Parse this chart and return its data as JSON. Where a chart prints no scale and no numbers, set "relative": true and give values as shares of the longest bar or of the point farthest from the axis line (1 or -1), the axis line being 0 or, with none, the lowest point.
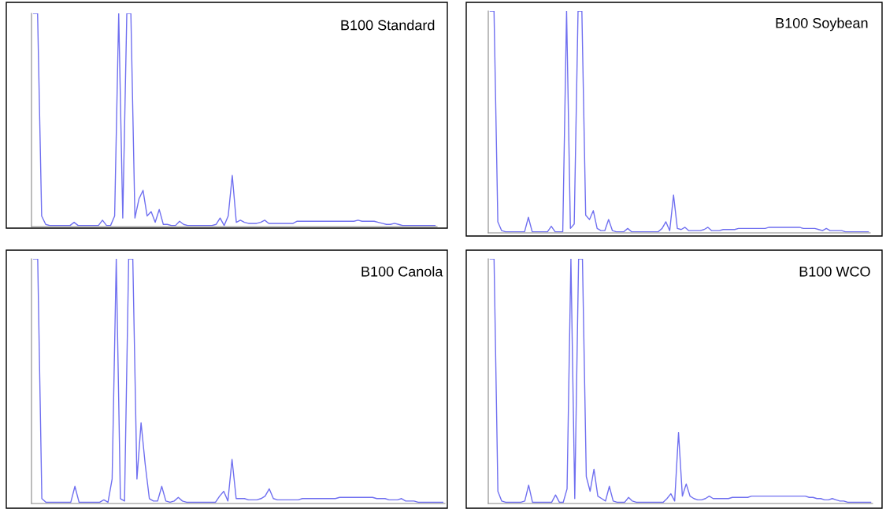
{
  "chart_data": [
    {
      "type": "line",
      "title": "B100 Standard",
      "relative": true,
      "color": "#6f6ff0",
      "categories": [
        null,
        null,
        null,
        null,
        null,
        null,
        null,
        null,
        null,
        null,
        null,
        null,
        null,
        null,
        null,
        null,
        null,
        null,
        null,
        null,
        null,
        null,
        null,
        null,
        null,
        null,
        null,
        null,
        null,
        null,
        null,
        null,
        null,
        null,
        null,
        null,
        null,
        null,
        null,
        null,
        null,
        null,
        null,
        null,
        null,
        null,
        null,
        null,
        null,
        null,
        null,
        null,
        null,
        null,
        null,
        null,
        null,
        null,
        null,
        null,
        null,
        null,
        null,
        null,
        null,
        null,
        null,
        null,
        null,
        null,
        null,
        null,
        null,
        null,
        null,
        null,
        null,
        null,
        null,
        null,
        null,
        null,
        null,
        null,
        null,
        null,
        null,
        null,
        null,
        null,
        null,
        null,
        null,
        null,
        null,
        null,
        null,
        null,
        null,
        null
      ],
      "values": [
        1,
        1,
        0.05,
        0.01,
        0.005,
        0.005,
        0.005,
        0.005,
        0.005,
        0.005,
        0.02,
        0.005,
        0.005,
        0.005,
        0.005,
        0.005,
        0.005,
        0.03,
        0.005,
        0.005,
        0.05,
        1,
        0.04,
        1,
        1,
        0.04,
        0.13,
        0.17,
        0.05,
        0.07,
        0.02,
        0.08,
        0.01,
        0.01,
        0.005,
        0.005,
        0.025,
        0.01,
        0.005,
        0.005,
        0.005,
        0.005,
        0.005,
        0.005,
        0.005,
        0.01,
        0.04,
        0.005,
        0.05,
        0.24,
        0.02,
        0.03,
        0.02,
        0.015,
        0.015,
        0.015,
        0.02,
        0.03,
        0.015,
        0.015,
        0.015,
        0.015,
        0.015,
        0.015,
        0.015,
        0.025,
        0.025,
        0.025,
        0.025,
        0.025,
        0.025,
        0.025,
        0.025,
        0.025,
        0.025,
        0.025,
        0.025,
        0.025,
        0.025,
        0.025,
        0.03,
        0.025,
        0.025,
        0.025,
        0.025,
        0.02,
        0.015,
        0.01,
        0.01,
        0.015,
        0.01,
        0.005,
        0.005,
        0.005,
        0.005,
        0.005,
        0.005,
        0.005,
        0.005,
        0.005
      ]
    },
    {
      "type": "line",
      "title": "B100 Soybean",
      "relative": true,
      "color": "#6f6ff0",
      "categories": [
        null,
        null,
        null,
        null,
        null,
        null,
        null,
        null,
        null,
        null,
        null,
        null,
        null,
        null,
        null,
        null,
        null,
        null,
        null,
        null,
        null,
        null,
        null,
        null,
        null,
        null,
        null,
        null,
        null,
        null,
        null,
        null,
        null,
        null,
        null,
        null,
        null,
        null,
        null,
        null,
        null,
        null,
        null,
        null,
        null,
        null,
        null,
        null,
        null,
        null,
        null,
        null,
        null,
        null,
        null,
        null,
        null,
        null,
        null,
        null,
        null,
        null,
        null,
        null,
        null,
        null,
        null,
        null,
        null,
        null,
        null,
        null,
        null,
        null,
        null,
        null,
        null,
        null,
        null,
        null,
        null,
        null,
        null,
        null,
        null,
        null,
        null,
        null,
        null,
        null,
        null,
        null,
        null,
        null,
        null,
        null,
        null,
        null,
        null,
        null
      ],
      "values": [
        1,
        1,
        0.05,
        0.01,
        0.005,
        0.005,
        0.005,
        0.005,
        0.005,
        0.005,
        0.07,
        0.005,
        0.005,
        0.005,
        0.005,
        0.005,
        0.03,
        0.005,
        0.005,
        0.005,
        1,
        0.02,
        0.04,
        1,
        1,
        0.08,
        0.06,
        0.1,
        0.02,
        0.01,
        0.01,
        0.06,
        0.01,
        0.005,
        0.005,
        0.005,
        0.02,
        0.005,
        0.005,
        0.005,
        0.005,
        0.005,
        0.005,
        0.005,
        0.005,
        0.02,
        0.05,
        0.01,
        0.17,
        0.02,
        0.015,
        0.025,
        0.01,
        0.01,
        0.01,
        0.01,
        0.015,
        0.025,
        0.01,
        0.01,
        0.01,
        0.015,
        0.015,
        0.015,
        0.015,
        0.02,
        0.02,
        0.02,
        0.02,
        0.02,
        0.02,
        0.02,
        0.02,
        0.025,
        0.025,
        0.025,
        0.025,
        0.025,
        0.025,
        0.025,
        0.025,
        0.025,
        0.02,
        0.02,
        0.02,
        0.02,
        0.015,
        0.01,
        0.02,
        0.01,
        0.01,
        0.01,
        0.01,
        0.005,
        0.005,
        0.005,
        0.005,
        0.005,
        0.005,
        0.005
      ]
    },
    {
      "type": "line",
      "title": "B100 Canola",
      "relative": true,
      "color": "#6f6ff0",
      "categories": [
        null,
        null,
        null,
        null,
        null,
        null,
        null,
        null,
        null,
        null,
        null,
        null,
        null,
        null,
        null,
        null,
        null,
        null,
        null,
        null,
        null,
        null,
        null,
        null,
        null,
        null,
        null,
        null,
        null,
        null,
        null,
        null,
        null,
        null,
        null,
        null,
        null,
        null,
        null,
        null,
        null,
        null,
        null,
        null,
        null,
        null,
        null,
        null,
        null,
        null,
        null,
        null,
        null,
        null,
        null,
        null,
        null,
        null,
        null,
        null,
        null,
        null,
        null,
        null,
        null,
        null,
        null,
        null,
        null,
        null,
        null,
        null,
        null,
        null,
        null,
        null,
        null,
        null,
        null,
        null,
        null,
        null,
        null,
        null,
        null,
        null,
        null,
        null,
        null,
        null,
        null,
        null,
        null,
        null,
        null,
        null,
        null,
        null,
        null,
        null
      ],
      "values": [
        1,
        1,
        0.02,
        0.005,
        0.005,
        0.005,
        0.005,
        0.005,
        0.005,
        0.005,
        0.07,
        0.005,
        0.005,
        0.005,
        0.005,
        0.005,
        0.005,
        0.015,
        0.005,
        0.1,
        1,
        0.02,
        0.01,
        1,
        1,
        0.1,
        0.33,
        0.16,
        0.02,
        0.01,
        0.01,
        0.07,
        0.01,
        0.005,
        0.01,
        0.025,
        0.01,
        0.005,
        0.005,
        0.005,
        0.005,
        0.005,
        0.005,
        0.005,
        0.005,
        0.03,
        0.05,
        0.01,
        0.18,
        0.02,
        0.02,
        0.02,
        0.015,
        0.015,
        0.015,
        0.02,
        0.03,
        0.06,
        0.02,
        0.015,
        0.015,
        0.015,
        0.015,
        0.015,
        0.015,
        0.02,
        0.02,
        0.02,
        0.02,
        0.02,
        0.02,
        0.02,
        0.02,
        0.02,
        0.025,
        0.025,
        0.025,
        0.025,
        0.025,
        0.025,
        0.025,
        0.025,
        0.025,
        0.02,
        0.02,
        0.02,
        0.015,
        0.015,
        0.015,
        0.02,
        0.01,
        0.01,
        0.01,
        0.005,
        0.005,
        0.005,
        0.005,
        0.005,
        0.005,
        0.005
      ]
    },
    {
      "type": "line",
      "title": "B100 WCO",
      "relative": true,
      "color": "#6f6ff0",
      "categories": [
        null,
        null,
        null,
        null,
        null,
        null,
        null,
        null,
        null,
        null,
        null,
        null,
        null,
        null,
        null,
        null,
        null,
        null,
        null,
        null,
        null,
        null,
        null,
        null,
        null,
        null,
        null,
        null,
        null,
        null,
        null,
        null,
        null,
        null,
        null,
        null,
        null,
        null,
        null,
        null,
        null,
        null,
        null,
        null,
        null,
        null,
        null,
        null,
        null,
        null,
        null,
        null,
        null,
        null,
        null,
        null,
        null,
        null,
        null,
        null,
        null,
        null,
        null,
        null,
        null,
        null,
        null,
        null,
        null,
        null,
        null,
        null,
        null,
        null,
        null,
        null,
        null,
        null,
        null,
        null,
        null,
        null,
        null,
        null,
        null,
        null,
        null,
        null,
        null,
        null,
        null,
        null,
        null,
        null,
        null,
        null,
        null,
        null,
        null,
        null
      ],
      "values": [
        1,
        1,
        0.05,
        0.01,
        0.005,
        0.005,
        0.005,
        0.005,
        0.005,
        0.01,
        0.075,
        0.005,
        0.005,
        0.005,
        0.005,
        0.005,
        0.005,
        0.035,
        0.005,
        0.005,
        0.06,
        1,
        0.02,
        1,
        1,
        0.11,
        0.05,
        0.14,
        0.03,
        0.02,
        0.01,
        0.07,
        0.01,
        0.005,
        0.005,
        0.005,
        0.025,
        0.01,
        0.005,
        0.005,
        0.005,
        0.005,
        0.005,
        0.005,
        0.005,
        0.005,
        0.02,
        0.04,
        0.01,
        0.29,
        0.03,
        0.08,
        0.03,
        0.02,
        0.015,
        0.015,
        0.02,
        0.03,
        0.02,
        0.02,
        0.02,
        0.02,
        0.02,
        0.025,
        0.025,
        0.025,
        0.025,
        0.025,
        0.03,
        0.03,
        0.03,
        0.03,
        0.03,
        0.03,
        0.03,
        0.03,
        0.03,
        0.03,
        0.03,
        0.03,
        0.03,
        0.03,
        0.03,
        0.025,
        0.025,
        0.02,
        0.02,
        0.015,
        0.015,
        0.02,
        0.015,
        0.01,
        0.01,
        0.005,
        0.005,
        0.005,
        0.005,
        0.005,
        0.005,
        0.005
      ]
    }
  ]
}
